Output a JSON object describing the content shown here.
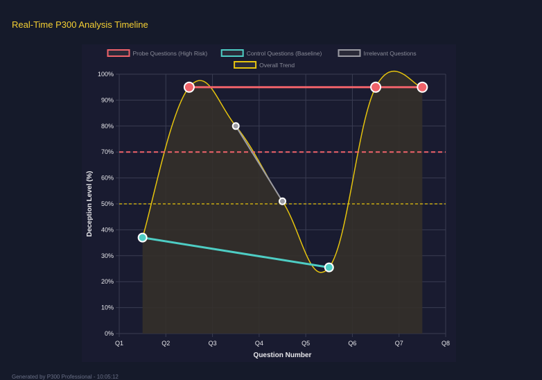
{
  "header": {
    "title": "Real-Time P300 Analysis Timeline"
  },
  "footer": {
    "text": "Generated by P300 Professional - 10:05:12"
  },
  "chart_data": {
    "type": "line",
    "title": "",
    "xlabel": "Question Number",
    "ylabel": "Deception Level (%)",
    "x_ticks": [
      "Q1",
      "Q2",
      "Q3",
      "Q4",
      "Q5",
      "Q6",
      "Q7",
      "Q8"
    ],
    "xlim": [
      1,
      8
    ],
    "ylim": [
      0,
      100
    ],
    "y_ticks": [
      "0%",
      "10%",
      "20%",
      "30%",
      "40%",
      "50%",
      "60%",
      "70%",
      "80%",
      "90%",
      "100%"
    ],
    "grid": true,
    "legend_placement": "top",
    "series": [
      {
        "name": "Probe Questions (High Risk)",
        "color": "#f0636a",
        "points": [
          [
            2.5,
            95
          ],
          [
            6.5,
            95
          ],
          [
            7.5,
            95
          ]
        ]
      },
      {
        "name": "Control Questions (Baseline)",
        "color": "#4ecdc4",
        "points": [
          [
            1.5,
            37
          ],
          [
            5.5,
            25.5
          ]
        ]
      },
      {
        "name": "Irrelevant Questions",
        "color": "#9b9ba3",
        "points": [
          [
            3.5,
            80
          ],
          [
            4.5,
            51
          ]
        ]
      },
      {
        "name": "Overall Trend",
        "color": "#e6c40e",
        "fill": "#34302a",
        "points": [
          [
            1.5,
            37
          ],
          [
            2.5,
            95
          ],
          [
            3.5,
            80
          ],
          [
            4.5,
            51
          ],
          [
            5.5,
            25.5
          ],
          [
            6.5,
            95
          ],
          [
            7.5,
            95
          ]
        ]
      }
    ],
    "thresholds": [
      {
        "value": 70,
        "color": "#f0636a"
      },
      {
        "value": 50,
        "color": "#e6c40e"
      }
    ]
  }
}
